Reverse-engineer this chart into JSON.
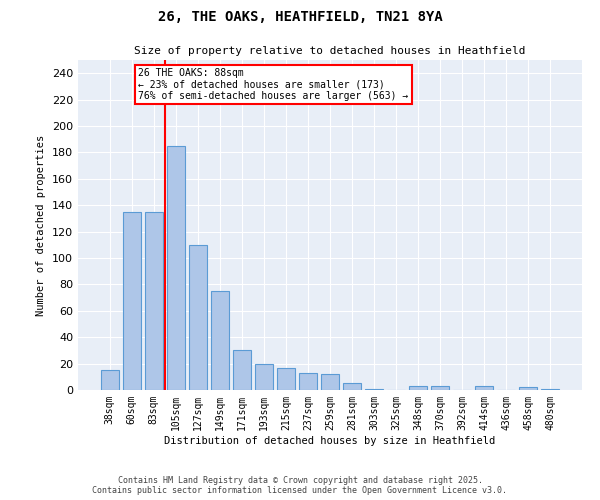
{
  "title1": "26, THE OAKS, HEATHFIELD, TN21 8YA",
  "title2": "Size of property relative to detached houses in Heathfield",
  "xlabel": "Distribution of detached houses by size in Heathfield",
  "ylabel": "Number of detached properties",
  "categories": [
    "38sqm",
    "60sqm",
    "83sqm",
    "105sqm",
    "127sqm",
    "149sqm",
    "171sqm",
    "193sqm",
    "215sqm",
    "237sqm",
    "259sqm",
    "281sqm",
    "303sqm",
    "325sqm",
    "348sqm",
    "370sqm",
    "392sqm",
    "414sqm",
    "436sqm",
    "458sqm",
    "480sqm"
  ],
  "values": [
    15,
    135,
    135,
    185,
    110,
    75,
    30,
    20,
    17,
    13,
    12,
    5,
    1,
    0,
    3,
    3,
    0,
    3,
    0,
    2,
    1
  ],
  "bar_color": "#aec6e8",
  "bar_edge_color": "#5b9bd5",
  "bar_width": 0.8,
  "red_line_x": 2.5,
  "annotation_line1": "26 THE OAKS: 88sqm",
  "annotation_line2": "← 23% of detached houses are smaller (173)",
  "annotation_line3": "76% of semi-detached houses are larger (563) →",
  "ylim": [
    0,
    250
  ],
  "yticks": [
    0,
    20,
    40,
    60,
    80,
    100,
    120,
    140,
    160,
    180,
    200,
    220,
    240
  ],
  "bg_color": "#e8eef7",
  "grid_color": "#ffffff",
  "footer1": "Contains HM Land Registry data © Crown copyright and database right 2025.",
  "footer2": "Contains public sector information licensed under the Open Government Licence v3.0."
}
